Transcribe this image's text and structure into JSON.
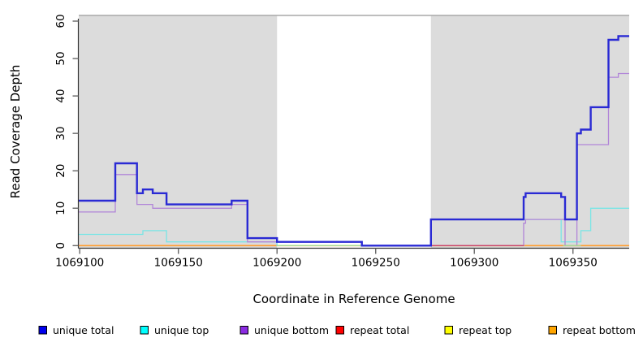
{
  "axes": {
    "x_label": "Coordinate in Reference Genome",
    "y_label": "Read Coverage Depth"
  },
  "chart_data": {
    "type": "line",
    "step": true,
    "title": "",
    "xlabel": "Coordinate in Reference Genome",
    "ylabel": "Read Coverage Depth",
    "xlim": [
      1069099.5,
      1069378.5
    ],
    "ylim": [
      0,
      61.5
    ],
    "x_ticks": [
      1069100,
      1069150,
      1069200,
      1069250,
      1069300,
      1069350
    ],
    "y_ticks": [
      0,
      10,
      20,
      30,
      40,
      50,
      60
    ],
    "grid": false,
    "legend_position": "bottom",
    "background_shading": {
      "color": "#dcdcdc",
      "regions": [
        [
          1069099.5,
          1069200
        ],
        [
          1069278,
          1069378.5
        ]
      ],
      "note": "white gap (no shading) between 1069200 and 1069278"
    },
    "series": [
      {
        "name": "repeat bottom",
        "legend_color": "#ffa500",
        "line_color": "#ff9d2e",
        "width": 1.6,
        "segments": [
          [
            [
              1069099.5,
              0
            ],
            [
              1069378.5,
              0
            ]
          ]
        ]
      },
      {
        "name": "unique top",
        "legend_color": "#00ffff",
        "line_color": "#79e5e5",
        "width": 1.3,
        "segments": [
          [
            [
              1069099.5,
              3
            ],
            [
              1069132,
              4
            ],
            [
              1069144,
              1
            ],
            [
              1069200,
              0
            ],
            [
              1069278,
              7
            ],
            [
              1069344,
              1
            ],
            [
              1069354,
              4
            ],
            [
              1069359,
              10
            ],
            [
              1069378.5,
              10
            ]
          ]
        ]
      },
      {
        "name": "unique bottom",
        "legend_color": "#8b2be2",
        "line_color": "#b185d8",
        "width": 1.3,
        "segments": [
          [
            [
              1069099.5,
              9
            ],
            [
              1069118,
              19
            ],
            [
              1069129,
              11
            ],
            [
              1069137,
              10
            ],
            [
              1069177,
              11
            ],
            [
              1069185,
              1
            ],
            [
              1069243,
              0
            ],
            [
              1069325,
              6
            ],
            [
              1069326,
              7
            ],
            [
              1069346,
              0
            ],
            [
              1069352,
              27
            ],
            [
              1069368,
              45
            ],
            [
              1069373,
              46
            ],
            [
              1069378.5,
              46
            ]
          ]
        ]
      },
      {
        "name": "repeat top",
        "legend_color": "#ffff00",
        "line_color": "#a6d98f",
        "width": 1.3,
        "segments": [
          [
            [
              1069200,
              0
            ],
            [
              1069243,
              0
            ]
          ],
          [
            [
              1069345,
              0
            ],
            [
              1069354,
              0
            ]
          ]
        ]
      },
      {
        "name": "repeat total",
        "legend_color": "#ff0000",
        "line_color": "#cc4466",
        "width": 1.3,
        "segments": [
          [
            [
              1069278,
              0
            ],
            [
              1069325,
              0
            ]
          ]
        ]
      },
      {
        "name": "unique total",
        "legend_color": "#0000ee",
        "line_color": "#2a2ad4",
        "width": 2.4,
        "segments": [
          [
            [
              1069099.5,
              12
            ],
            [
              1069118,
              22
            ],
            [
              1069129,
              14
            ],
            [
              1069132,
              15
            ],
            [
              1069137,
              14
            ],
            [
              1069144,
              11
            ],
            [
              1069177,
              12
            ],
            [
              1069185,
              2
            ],
            [
              1069200,
              1
            ],
            [
              1069243,
              0
            ],
            [
              1069278,
              7
            ],
            [
              1069325,
              13
            ],
            [
              1069326,
              14
            ],
            [
              1069344,
              13
            ],
            [
              1069346,
              7
            ],
            [
              1069352,
              30
            ],
            [
              1069354,
              31
            ],
            [
              1069359,
              37
            ],
            [
              1069368,
              55
            ],
            [
              1069373,
              56
            ],
            [
              1069378.5,
              56
            ]
          ]
        ]
      }
    ]
  },
  "legend": {
    "items": [
      {
        "label": "unique total",
        "color": "#0000ee"
      },
      {
        "label": "unique top",
        "color": "#00ffff"
      },
      {
        "label": "unique bottom",
        "color": "#8b2be2"
      },
      {
        "label": "repeat total",
        "color": "#ff0000"
      },
      {
        "label": "repeat top",
        "color": "#ffff00"
      },
      {
        "label": "repeat bottom",
        "color": "#ffa500"
      }
    ]
  }
}
